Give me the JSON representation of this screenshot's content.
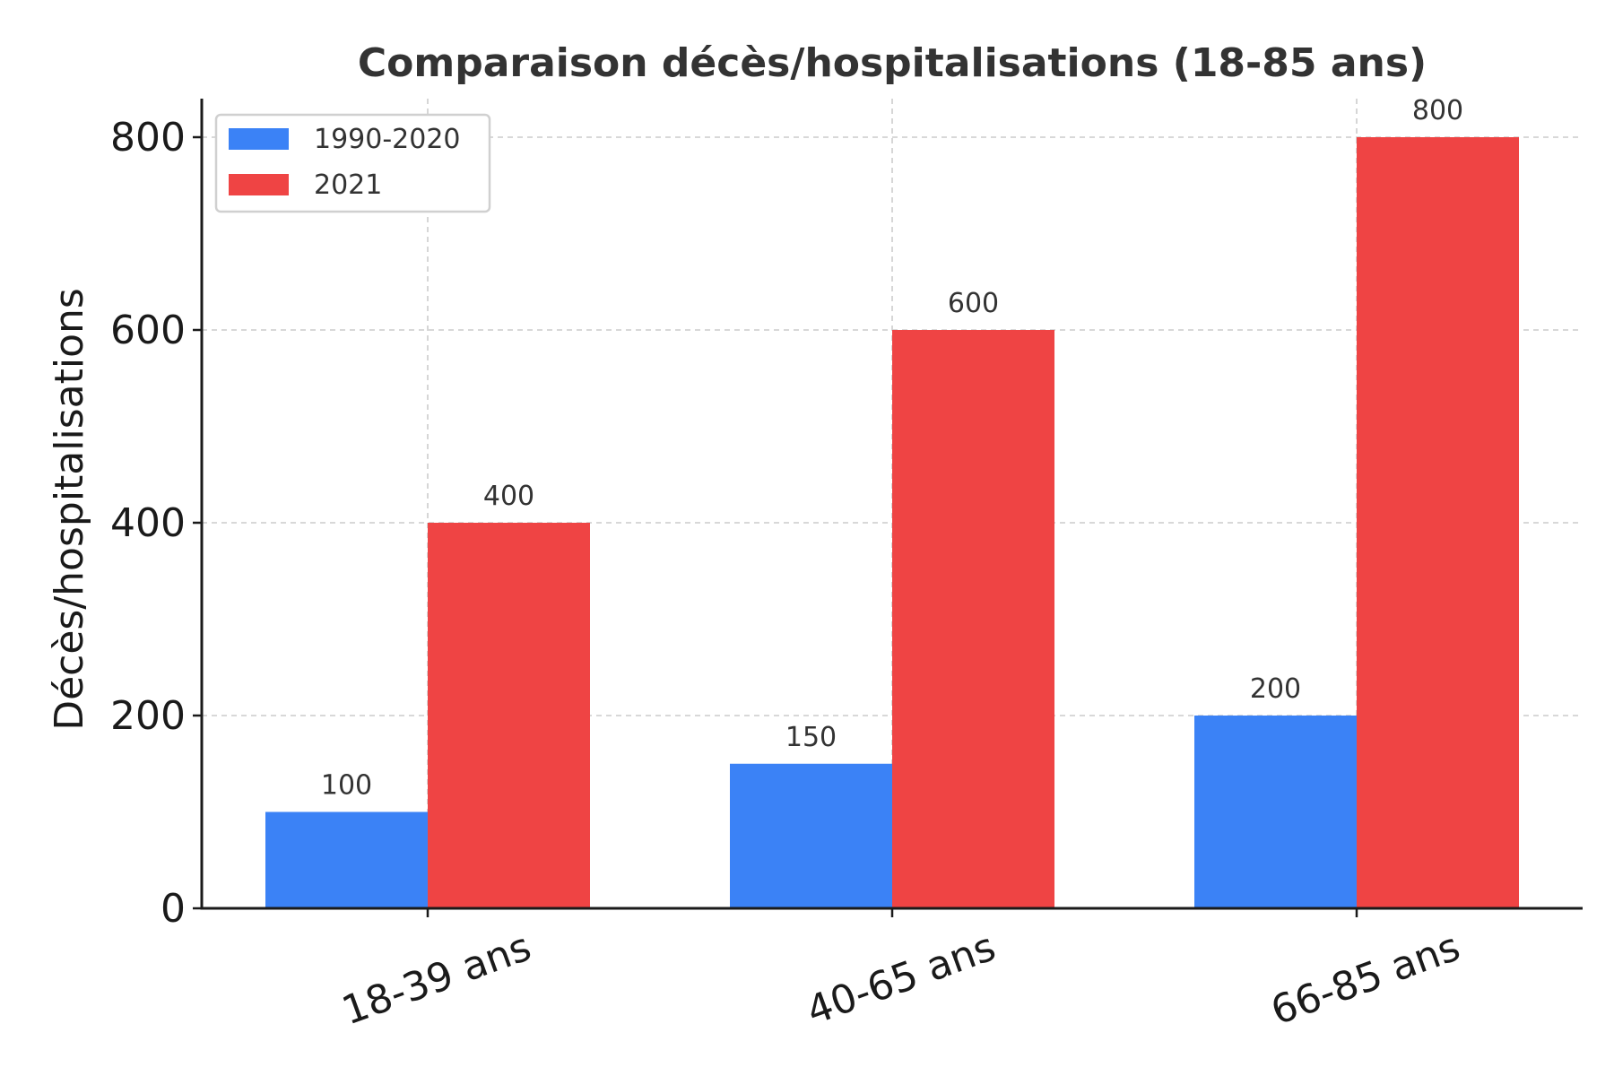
{
  "chart_data": {
    "type": "bar",
    "title": "Comparaison décès/hospitalisations (18-85 ans)",
    "xlabel": "",
    "ylabel": "Décès/hospitalisations",
    "categories": [
      "18-39 ans",
      "40-65 ans",
      "66-85 ans"
    ],
    "series": [
      {
        "name": "1990-2020",
        "values": [
          100,
          150,
          200
        ],
        "color": "#3b82f6"
      },
      {
        "name": "2021",
        "values": [
          400,
          600,
          800
        ],
        "color": "#ef4444"
      }
    ],
    "ylim": [
      0,
      840
    ],
    "yticks": [
      0,
      200,
      400,
      600,
      800
    ],
    "grid": true,
    "legend_position": "top-left"
  }
}
